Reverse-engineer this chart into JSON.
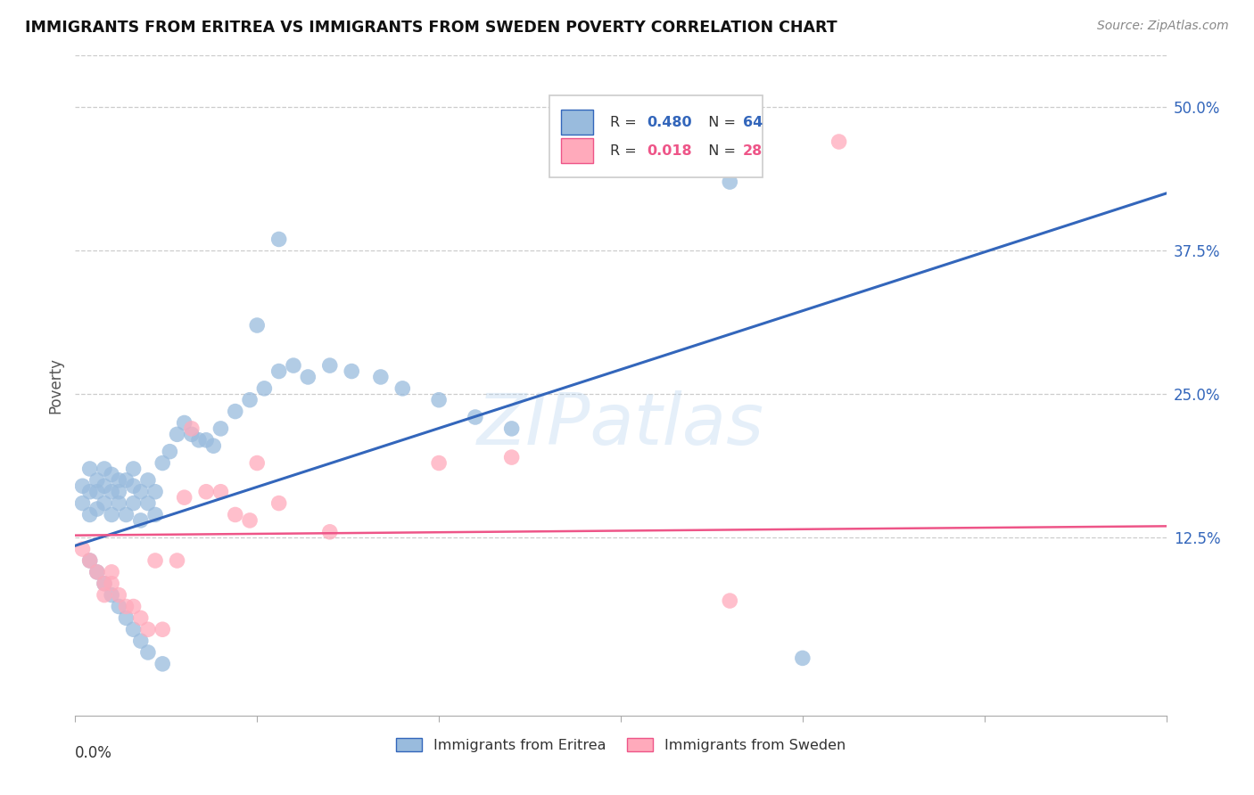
{
  "title": "IMMIGRANTS FROM ERITREA VS IMMIGRANTS FROM SWEDEN POVERTY CORRELATION CHART",
  "source": "Source: ZipAtlas.com",
  "ylabel": "Poverty",
  "ytick_vals": [
    0.125,
    0.25,
    0.375,
    0.5
  ],
  "ytick_labels": [
    "12.5%",
    "25.0%",
    "37.5%",
    "50.0%"
  ],
  "xlim": [
    0.0,
    0.15
  ],
  "ylim": [
    -0.03,
    0.545
  ],
  "legend_eritrea_R": "0.480",
  "legend_eritrea_N": "64",
  "legend_sweden_R": "0.018",
  "legend_sweden_N": "28",
  "color_eritrea": "#99BBDD",
  "color_sweden": "#FFAABB",
  "color_line_eritrea": "#3366BB",
  "color_line_sweden": "#EE5588",
  "watermark": "ZIPatlas",
  "eritrea_line_x0": 0.0,
  "eritrea_line_y0": 0.118,
  "eritrea_line_x1": 0.15,
  "eritrea_line_y1": 0.425,
  "sweden_line_x0": 0.0,
  "sweden_line_y0": 0.127,
  "sweden_line_x1": 0.15,
  "sweden_line_y1": 0.135,
  "eritrea_x": [
    0.001,
    0.001,
    0.002,
    0.002,
    0.002,
    0.003,
    0.003,
    0.003,
    0.004,
    0.004,
    0.004,
    0.005,
    0.005,
    0.005,
    0.006,
    0.006,
    0.006,
    0.007,
    0.007,
    0.008,
    0.008,
    0.008,
    0.009,
    0.009,
    0.01,
    0.01,
    0.011,
    0.011,
    0.012,
    0.013,
    0.014,
    0.015,
    0.016,
    0.017,
    0.018,
    0.019,
    0.02,
    0.022,
    0.024,
    0.026,
    0.028,
    0.03,
    0.032,
    0.035,
    0.038,
    0.042,
    0.045,
    0.05,
    0.055,
    0.06,
    0.002,
    0.003,
    0.004,
    0.005,
    0.006,
    0.007,
    0.008,
    0.009,
    0.01,
    0.012,
    0.09,
    0.1,
    0.028,
    0.025
  ],
  "eritrea_y": [
    0.155,
    0.17,
    0.145,
    0.165,
    0.185,
    0.15,
    0.165,
    0.175,
    0.155,
    0.17,
    0.185,
    0.145,
    0.165,
    0.18,
    0.155,
    0.165,
    0.175,
    0.145,
    0.175,
    0.155,
    0.17,
    0.185,
    0.14,
    0.165,
    0.155,
    0.175,
    0.145,
    0.165,
    0.19,
    0.2,
    0.215,
    0.225,
    0.215,
    0.21,
    0.21,
    0.205,
    0.22,
    0.235,
    0.245,
    0.255,
    0.27,
    0.275,
    0.265,
    0.275,
    0.27,
    0.265,
    0.255,
    0.245,
    0.23,
    0.22,
    0.105,
    0.095,
    0.085,
    0.075,
    0.065,
    0.055,
    0.045,
    0.035,
    0.025,
    0.015,
    0.435,
    0.02,
    0.385,
    0.31
  ],
  "sweden_x": [
    0.001,
    0.002,
    0.003,
    0.004,
    0.004,
    0.005,
    0.005,
    0.006,
    0.007,
    0.008,
    0.009,
    0.01,
    0.011,
    0.012,
    0.014,
    0.015,
    0.016,
    0.018,
    0.02,
    0.022,
    0.025,
    0.028,
    0.035,
    0.05,
    0.06,
    0.09,
    0.105,
    0.024
  ],
  "sweden_y": [
    0.115,
    0.105,
    0.095,
    0.085,
    0.075,
    0.085,
    0.095,
    0.075,
    0.065,
    0.065,
    0.055,
    0.045,
    0.105,
    0.045,
    0.105,
    0.16,
    0.22,
    0.165,
    0.165,
    0.145,
    0.19,
    0.155,
    0.13,
    0.19,
    0.195,
    0.07,
    0.47,
    0.14
  ]
}
